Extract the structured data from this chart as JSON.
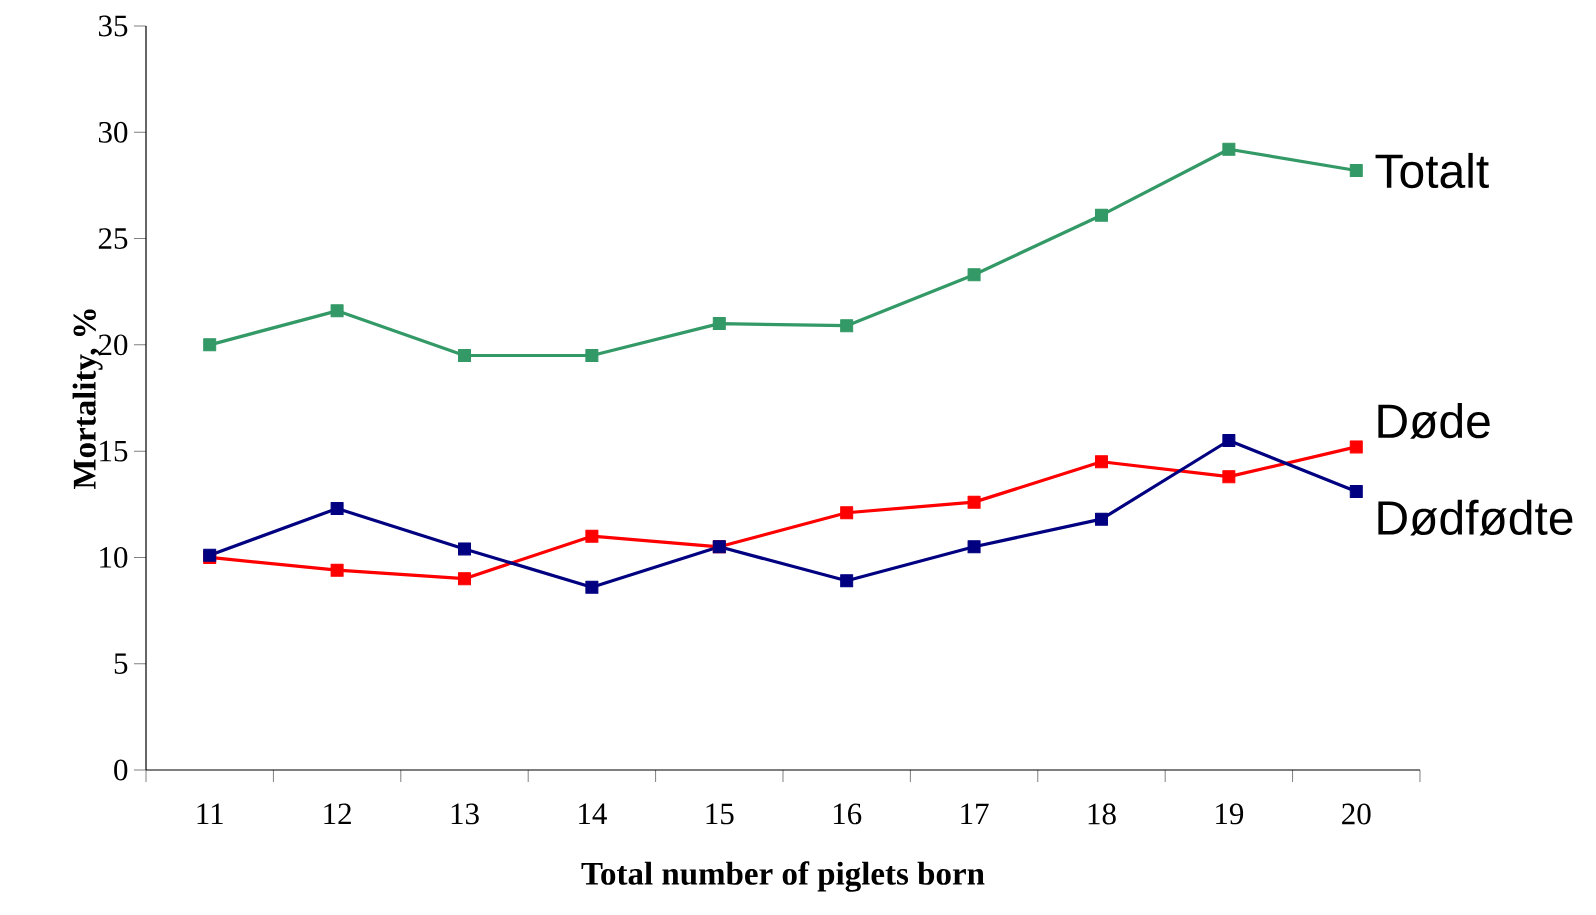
{
  "chart_data": {
    "type": "line",
    "xlabel": "Total number of piglets born",
    "ylabel": "Mortality, %",
    "categories": [
      "11",
      "12",
      "13",
      "14",
      "15",
      "16",
      "17",
      "18",
      "19",
      "20"
    ],
    "series": [
      {
        "name": "Totalt",
        "color": "#339966",
        "values": [
          20.0,
          21.6,
          19.5,
          19.5,
          21.0,
          20.9,
          23.3,
          26.1,
          29.2,
          28.2
        ]
      },
      {
        "name": "Døde",
        "color": "#ff0000",
        "values": [
          10.0,
          9.4,
          9.0,
          11.0,
          10.5,
          12.1,
          12.6,
          14.5,
          13.8,
          15.2
        ]
      },
      {
        "name": "Dødfødte",
        "color": "#000080",
        "values": [
          10.1,
          12.3,
          10.4,
          8.6,
          10.5,
          8.9,
          10.5,
          11.8,
          15.5,
          13.1
        ]
      }
    ],
    "ylim": [
      0,
      35
    ],
    "yticks": [
      0,
      5,
      10,
      15,
      20,
      25,
      30,
      35
    ],
    "marker": "square",
    "line_style": "solid",
    "grid": false
  }
}
